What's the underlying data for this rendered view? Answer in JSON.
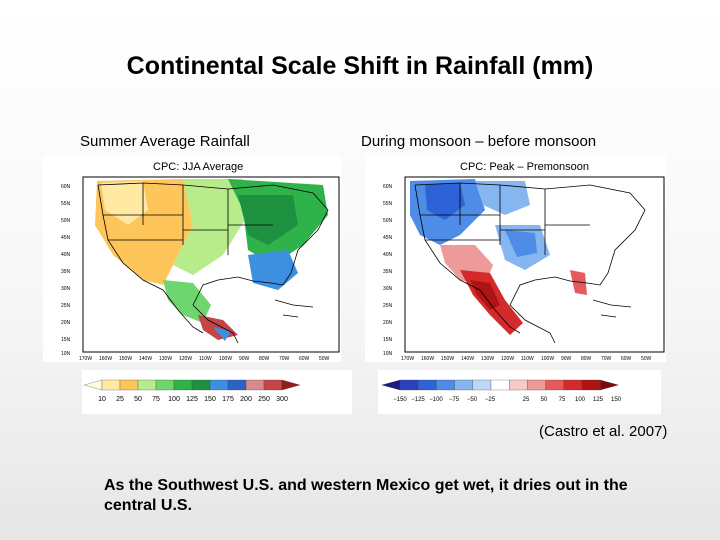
{
  "slide": {
    "title": "Continental Scale Shift in Rainfall (mm)",
    "left_subtitle": "Summer Average Rainfall",
    "right_subtitle": "During monsoon – before monsoon",
    "citation": "(Castro et al. 2007)",
    "caption": "As the Southwest U.S. and western Mexico get wet, it dries out in the central U.S."
  },
  "left_map": {
    "panel_title": "CPC: JJA Average",
    "lat_labels": [
      "60N",
      "55N",
      "50N",
      "45N",
      "40N",
      "35N",
      "30N",
      "25N",
      "20N",
      "15N",
      "10N"
    ],
    "lon_labels": [
      "170W",
      "160W",
      "150W",
      "140W",
      "130W",
      "120W",
      "110W",
      "100W",
      "90W",
      "80W",
      "70W",
      "60W",
      "50W"
    ],
    "colorbar": {
      "ticks": [
        "10",
        "25",
        "50",
        "75",
        "100",
        "125",
        "150",
        "175",
        "200",
        "250",
        "300"
      ],
      "colors": [
        "#fffbe0",
        "#ffe9a3",
        "#fdc55a",
        "#b8ec8a",
        "#6fd56e",
        "#2fb24a",
        "#1e9140",
        "#3d8fe0",
        "#2b62c7",
        "#d98b8b",
        "#c34545",
        "#8f1e1e"
      ]
    },
    "regions": [
      {
        "name": "southwest-us",
        "color": "#fdc55a"
      },
      {
        "name": "great-plains",
        "color": "#b8ec8a"
      },
      {
        "name": "midwest-east",
        "color": "#2fb24a"
      },
      {
        "name": "southeast-us",
        "color": "#3d8fe0"
      },
      {
        "name": "western-mexico",
        "color": "#6fd56e"
      },
      {
        "name": "southern-mexico",
        "color": "#c34545"
      }
    ]
  },
  "right_map": {
    "panel_title": "CPC: Peak – Premonsoon",
    "lat_labels": [
      "60N",
      "55N",
      "50N",
      "45N",
      "40N",
      "35N",
      "30N",
      "25N",
      "20N",
      "15N",
      "10N"
    ],
    "lon_labels": [
      "170W",
      "160W",
      "150W",
      "140W",
      "130W",
      "120W",
      "110W",
      "100W",
      "90W",
      "80W",
      "70W",
      "60W",
      "50W"
    ],
    "colorbar": {
      "ticks": [
        "−150",
        "−125",
        "−100",
        "−75",
        "−50",
        "−25",
        "25",
        "50",
        "75",
        "100",
        "125",
        "150"
      ],
      "colors": [
        "#1a1a80",
        "#2b3fbf",
        "#2e62d9",
        "#4e8ce8",
        "#86b6f0",
        "#bcd8f7",
        "#ffffff",
        "#f7c9c9",
        "#ef9a9a",
        "#e35b5b",
        "#d32b2b",
        "#b01313",
        "#7d0a0a"
      ]
    },
    "regions": [
      {
        "name": "pacific-northwest",
        "color": "#4e8ce8"
      },
      {
        "name": "central-plains",
        "color": "#86b6f0"
      },
      {
        "name": "southwest-us",
        "color": "#ef9a9a"
      },
      {
        "name": "western-mexico",
        "color": "#d32b2b"
      },
      {
        "name": "florida",
        "color": "#e35b5b"
      }
    ]
  }
}
